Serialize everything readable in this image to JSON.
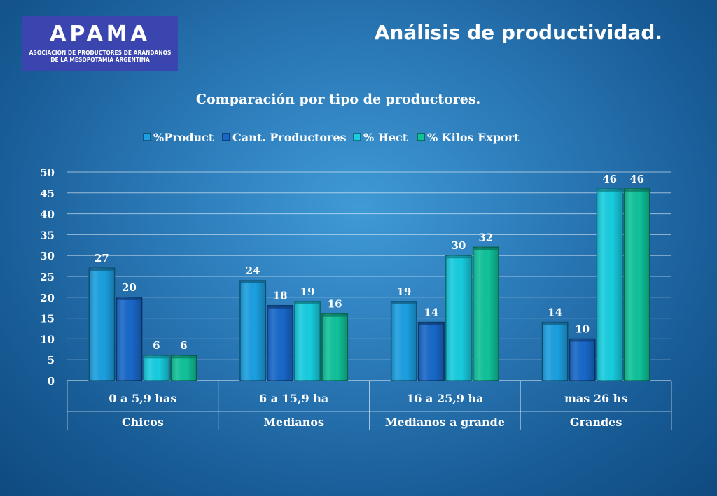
{
  "page": {
    "title": "Análisis de productividad.",
    "logo": {
      "name": "APAMA",
      "line1": "ASOCIACIÓN DE PRODUCTORES DE ARÁNDANOS",
      "line2": "DE LA MESOPOTAMIA ARGENTINA"
    }
  },
  "colors": {
    "%Product": "#1c9fe0",
    "Cant. Productores": "#1868c9",
    "% Hect": "#18cde0",
    "% Kilos Export": "#10c29a"
  },
  "chart_data": {
    "type": "bar",
    "title": "Comparación por tipo de productores.",
    "xlabel": "",
    "ylabel": "",
    "ylim": [
      0,
      50
    ],
    "yticks": [
      0,
      5,
      10,
      15,
      20,
      25,
      30,
      35,
      40,
      45,
      50
    ],
    "grid": true,
    "legend_position": "top",
    "categories": [
      "0 a 5,9 has",
      "6 a 15,9 ha",
      "16 a 25,9 ha",
      "mas 26 hs"
    ],
    "groups": [
      "Chicos",
      "Medianos",
      "Medianos a grande",
      "Grandes"
    ],
    "series": [
      {
        "name": "%Product",
        "values": [
          27,
          24,
          19,
          14
        ]
      },
      {
        "name": "Cant. Productores",
        "values": [
          20,
          18,
          14,
          10
        ]
      },
      {
        "name": "% Hect",
        "values": [
          6,
          19,
          30,
          46
        ]
      },
      {
        "name": "% Kilos Export",
        "values": [
          6,
          16,
          32,
          46
        ]
      }
    ]
  }
}
